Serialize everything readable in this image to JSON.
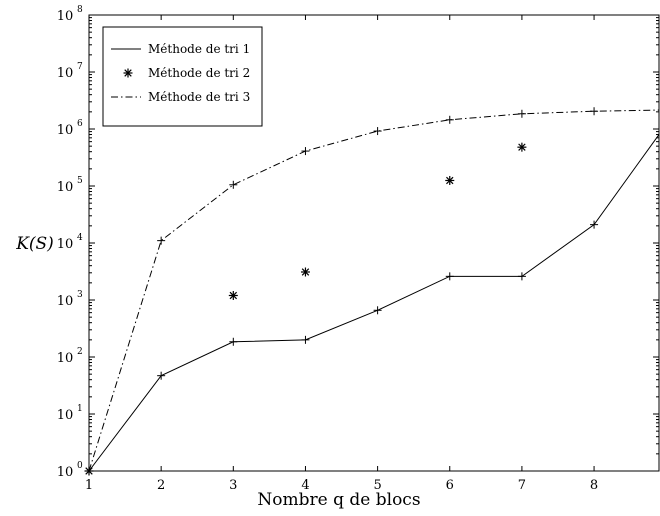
{
  "chart_data": {
    "type": "line",
    "title": "",
    "xlabel": "Nombre q de blocs",
    "ylabel": "K(S)",
    "x_ticks": [
      "1",
      "2",
      "3",
      "4",
      "5",
      "6",
      "7",
      "8"
    ],
    "xlim": [
      1,
      8.9
    ],
    "y_scale": "log",
    "ylim": [
      1,
      100000000
    ],
    "y_tick_exponents": [
      "0",
      "1",
      "2",
      "3",
      "4",
      "5",
      "6",
      "7",
      "8"
    ],
    "y_tick_base": "10",
    "grid": false,
    "legend_position": "top-left",
    "series": [
      {
        "name": "Méthode de tri 1",
        "style": "solid-line",
        "x": [
          1,
          2,
          3,
          4,
          5,
          6,
          7,
          8,
          8.9
        ],
        "y": [
          1,
          47,
          185,
          200,
          660,
          2600,
          2600,
          21000,
          800000
        ]
      },
      {
        "name": "Méthode de tri 2",
        "style": "asterisk-markers",
        "x": [
          1,
          3,
          4,
          6,
          7
        ],
        "y": [
          1,
          1200,
          3100,
          125000,
          480000
        ]
      },
      {
        "name": "Méthode de tri 3",
        "style": "dash-dot-line",
        "x": [
          1,
          2,
          3,
          4,
          5,
          6,
          7,
          8,
          8.9
        ],
        "y": [
          1,
          11000,
          105000,
          410000,
          920000,
          1450000,
          1850000,
          2050000,
          2150000
        ]
      }
    ]
  }
}
